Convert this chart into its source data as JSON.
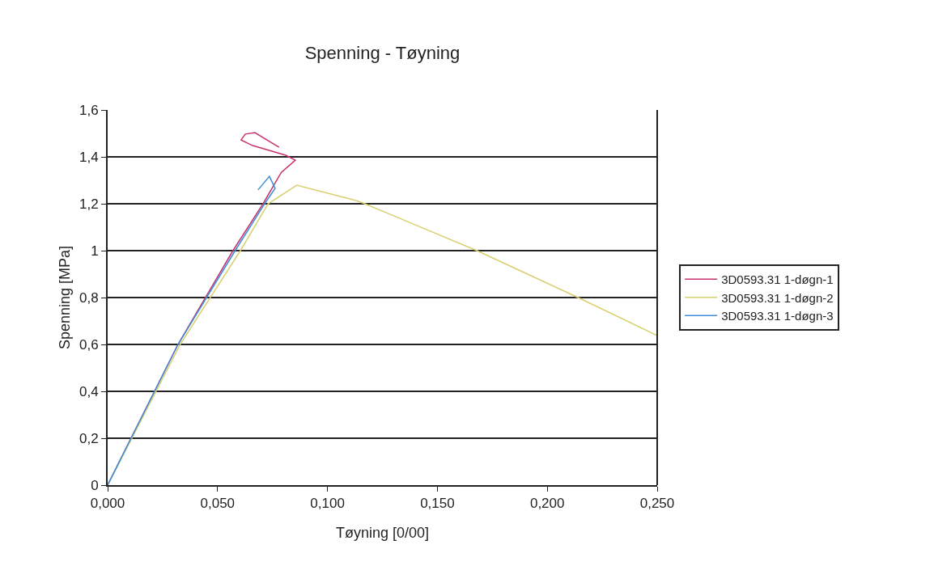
{
  "chart_data": {
    "type": "line",
    "title": "Spenning - Tøyning",
    "xlabel": "Tøyning [0/00]",
    "ylabel": "Spenning [MPa]",
    "xlim": [
      0,
      0.25
    ],
    "xticks": [
      {
        "value": 0,
        "label": "0,000"
      },
      {
        "value": 0.05,
        "label": "0,050"
      },
      {
        "value": 0.1,
        "label": "0,100"
      },
      {
        "value": 0.15,
        "label": "0,150"
      },
      {
        "value": 0.2,
        "label": "0,200"
      },
      {
        "value": 0.25,
        "label": "0,250"
      }
    ],
    "ylim": [
      0,
      1.6
    ],
    "yticks": [
      0,
      {
        "value": 0.2,
        "label": "0,2"
      },
      {
        "value": 0.4,
        "label": "0,4"
      },
      {
        "value": 0.6,
        "label": "0,6"
      },
      {
        "value": 0.8,
        "label": "0,8"
      },
      1,
      {
        "value": 1.2,
        "label": "1,2"
      },
      {
        "value": 1.4,
        "label": "1,4"
      },
      {
        "value": 1.6,
        "label": "1,6"
      }
    ],
    "grid": "y",
    "legend": "right",
    "marker": "none",
    "line_style": "solid",
    "series": [
      {
        "name": "3D0593.31 1-døgn-1",
        "color": "#c8336e",
        "x": [
          0,
          0.032,
          0.057,
          0.0707,
          0.079,
          0.0854,
          0.081,
          0.066,
          0.0607,
          0.0626,
          0.067,
          0.078
        ],
        "values": [
          0,
          0.6,
          1.0,
          1.2,
          1.334,
          1.386,
          1.407,
          1.448,
          1.472,
          1.497,
          1.503,
          1.441
        ]
      },
      {
        "name": "3D0593.31 1-døgn-2",
        "color": "#d8d070",
        "x": [
          0,
          0.033,
          0.0604,
          0.073,
          0.086,
          0.113,
          0.117,
          0.168,
          0.214,
          0.25
        ],
        "values": [
          0,
          0.6,
          1.0,
          1.2,
          1.279,
          1.214,
          1.2,
          1.0,
          0.8,
          0.638
        ]
      },
      {
        "name": "3D0593.31 1-døgn-3",
        "color": "#3a8fd8",
        "x": [
          0,
          0.032,
          0.058,
          0.0714,
          0.0762,
          0.0736,
          0.0684
        ],
        "values": [
          0,
          0.6,
          1.0,
          1.2,
          1.266,
          1.317,
          1.259
        ]
      }
    ]
  }
}
